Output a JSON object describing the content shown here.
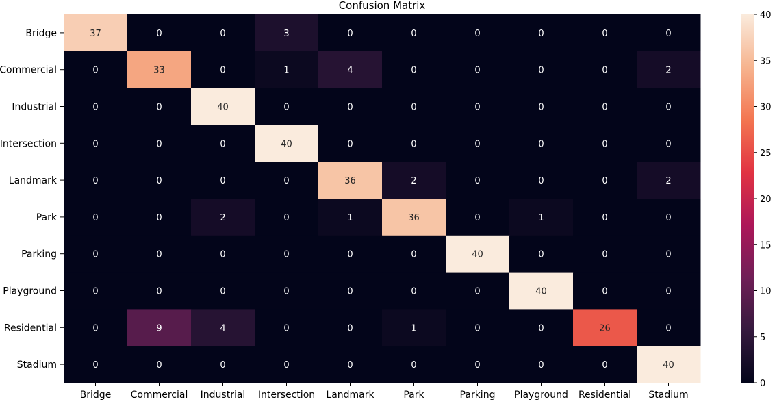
{
  "chart_data": {
    "type": "heatmap",
    "title": "Confusion Matrix",
    "xlabel": "",
    "ylabel": "",
    "x_categories": [
      "Bridge",
      "Commercial",
      "Industrial",
      "Intersection",
      "Landmark",
      "Park",
      "Parking",
      "Playground",
      "Residential",
      "Stadium"
    ],
    "y_categories": [
      "Bridge",
      "Commercial",
      "Industrial",
      "Intersection",
      "Landmark",
      "Park",
      "Parking",
      "Playground",
      "Residential",
      "Stadium"
    ],
    "values": [
      [
        37,
        0,
        0,
        3,
        0,
        0,
        0,
        0,
        0,
        0
      ],
      [
        0,
        33,
        0,
        1,
        4,
        0,
        0,
        0,
        0,
        2
      ],
      [
        0,
        0,
        40,
        0,
        0,
        0,
        0,
        0,
        0,
        0
      ],
      [
        0,
        0,
        0,
        40,
        0,
        0,
        0,
        0,
        0,
        0
      ],
      [
        0,
        0,
        0,
        0,
        36,
        2,
        0,
        0,
        0,
        2
      ],
      [
        0,
        0,
        2,
        0,
        1,
        36,
        0,
        1,
        0,
        0
      ],
      [
        0,
        0,
        0,
        0,
        0,
        0,
        40,
        0,
        0,
        0
      ],
      [
        0,
        0,
        0,
        0,
        0,
        0,
        0,
        40,
        0,
        0
      ],
      [
        0,
        9,
        4,
        0,
        0,
        1,
        0,
        0,
        26,
        0
      ],
      [
        0,
        0,
        0,
        0,
        0,
        0,
        0,
        0,
        0,
        40
      ]
    ],
    "vmin": 0,
    "vmax": 40,
    "colorbar_ticks": [
      0,
      5,
      10,
      15,
      20,
      25,
      30,
      35,
      40
    ],
    "colormap": "rocket",
    "colormap_stops": [
      "#03051a",
      "#35193e",
      "#701f57",
      "#ad1759",
      "#e13342",
      "#f37651",
      "#f6b48f",
      "#faebdd"
    ],
    "annotation_colors": {
      "on_dark": "#ffffff",
      "on_light": "#262626"
    }
  }
}
